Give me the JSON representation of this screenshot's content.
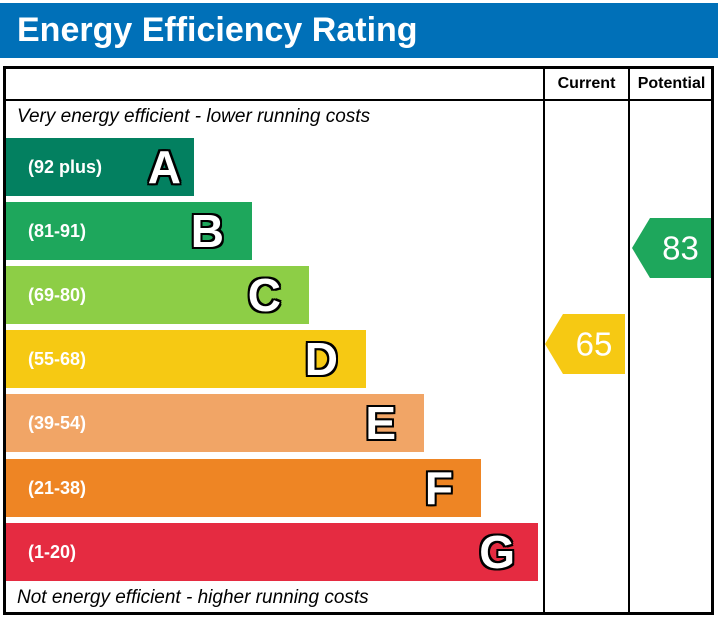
{
  "title": "Energy Efficiency Rating",
  "table": {
    "current_header": "Current",
    "potential_header": "Potential"
  },
  "notes": {
    "top": "Very energy efficient - lower running costs",
    "bottom": "Not energy efficient - higher running costs"
  },
  "colors": {
    "header_bg": "#0070b8",
    "header_text": "#ffffff",
    "border": "#000000"
  },
  "chart_data": {
    "type": "bar",
    "title": "Energy Efficiency Rating",
    "legend_position": "right-columns",
    "bands": [
      {
        "letter": "A",
        "range_label": "(92 plus)",
        "color": "#038060"
      },
      {
        "letter": "B",
        "range_label": "(81-91)",
        "color": "#1ea75c"
      },
      {
        "letter": "C",
        "range_label": "(69-80)",
        "color": "#8dce46"
      },
      {
        "letter": "D",
        "range_label": "(55-68)",
        "color": "#f6c913"
      },
      {
        "letter": "E",
        "range_label": "(39-54)",
        "color": "#f1a566"
      },
      {
        "letter": "F",
        "range_label": "(21-38)",
        "color": "#ee8524"
      },
      {
        "letter": "G",
        "range_label": "(1-20)",
        "color": "#e52b41"
      }
    ],
    "current": {
      "label": "65",
      "value": 65,
      "band": "D",
      "color": "#f6c913"
    },
    "potential": {
      "label": "83",
      "value": 83,
      "band": "B",
      "color": "#1ea75c"
    }
  }
}
